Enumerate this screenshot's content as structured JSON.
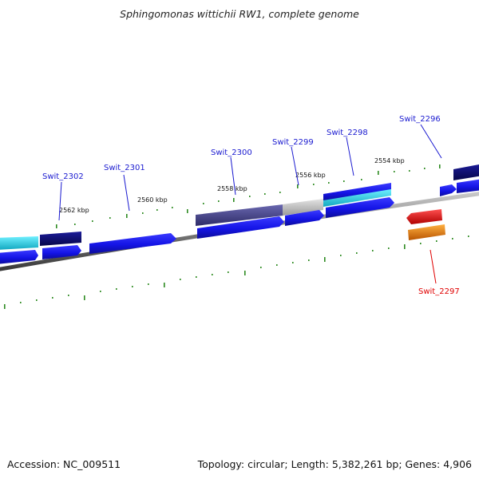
{
  "title": "Sphingomonas wittichii RW1, complete genome",
  "footer": {
    "accession": "Accession: NC_009511",
    "topology": "Topology: circular; Length: 5,382,261 bp; Genes: 4,906"
  },
  "colors": {
    "backbone": "#808080",
    "tick": "#2e8b22",
    "label_blue": "#1a1ad0",
    "label_red": "#e00000",
    "navy": "#0a0a78",
    "blue": "#1414e6",
    "cyan": "#22d0e0",
    "slate": "#4a4888",
    "grey": "#c0c0c0",
    "red": "#ff0000",
    "orange": "#f07a00"
  },
  "scale_labels": [
    "2562 kbp",
    "2560 kbp",
    "2558 kbp",
    "2556 kbp",
    "2554 kbp"
  ],
  "gene_labels": [
    "Swit_2302",
    "Swit_2301",
    "Swit_2300",
    "Swit_2299",
    "Swit_2298",
    "Swit_2296",
    "Swit_2297"
  ]
}
